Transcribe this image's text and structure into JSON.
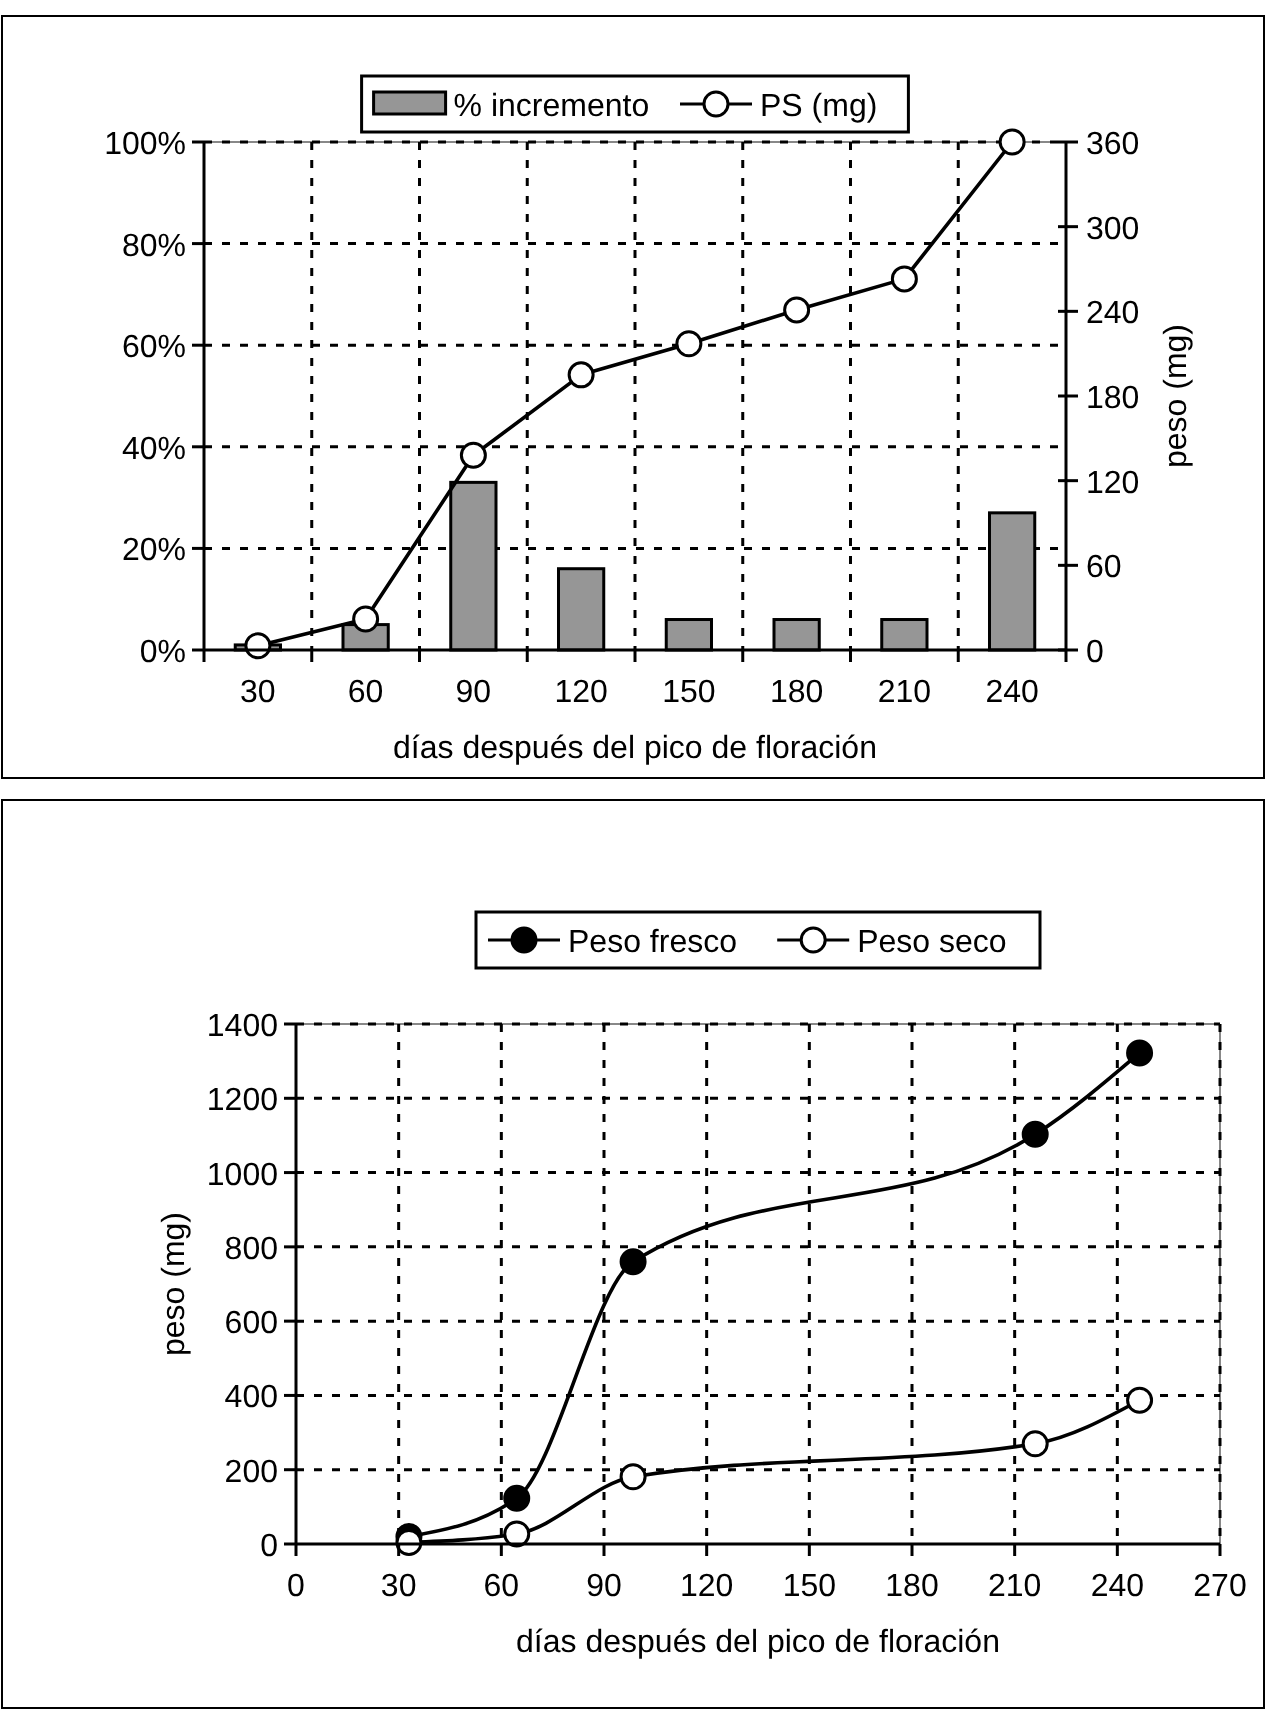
{
  "chart_data": [
    {
      "type": "bar",
      "xlabel": "días después del pico de floración",
      "y2label": "peso (mg)",
      "categories": [
        "30",
        "60",
        "90",
        "120",
        "150",
        "180",
        "210",
        "240"
      ],
      "series": [
        {
          "name": "% incremento",
          "color": "#969696",
          "values": [
            1,
            5,
            33,
            16,
            6,
            6,
            6,
            27
          ]
        },
        {
          "name": "PS (mg)",
          "type": "line",
          "axis": "y2",
          "color": "#000000",
          "marker": "circle",
          "values": [
            3,
            22,
            138,
            195,
            217,
            241,
            263,
            360
          ]
        }
      ],
      "ylim": [
        0,
        100
      ],
      "yticks": [
        {
          "value": 0,
          "label": "0%"
        },
        {
          "value": 20,
          "label": "20%"
        },
        {
          "value": 40,
          "label": "40%"
        },
        {
          "value": 60,
          "label": "60%"
        },
        {
          "value": 80,
          "label": "80%"
        },
        {
          "value": 100,
          "label": "100%"
        }
      ],
      "y2lim": [
        0,
        360
      ],
      "y2ticks": [
        0,
        60,
        120,
        180,
        240,
        300,
        360
      ],
      "grid": true,
      "legend": "top"
    },
    {
      "type": "line",
      "xlabel": "días después del pico de floración",
      "ylabel": "peso (mg)",
      "series": [
        {
          "name": "Peso fresco",
          "color": "#000000",
          "marker": "circle",
          "x": [
            33,
            64.5,
            98.5,
            216,
            246.5
          ],
          "values": [
            20,
            123,
            760,
            1103,
            1322
          ]
        },
        {
          "name": "Peso seco",
          "color": "#000000",
          "marker": "circle",
          "x": [
            33,
            64.5,
            98.5,
            216,
            246.5
          ],
          "values": [
            4,
            27,
            181,
            270,
            387
          ]
        }
      ],
      "xlim": [
        0,
        270
      ],
      "xticks": [
        0,
        30,
        60,
        90,
        120,
        150,
        180,
        210,
        240,
        270
      ],
      "ylim": [
        0,
        1400
      ],
      "yticks": [
        0,
        200,
        400,
        600,
        800,
        1000,
        1200,
        1400
      ],
      "grid": true,
      "legend": "top"
    }
  ]
}
